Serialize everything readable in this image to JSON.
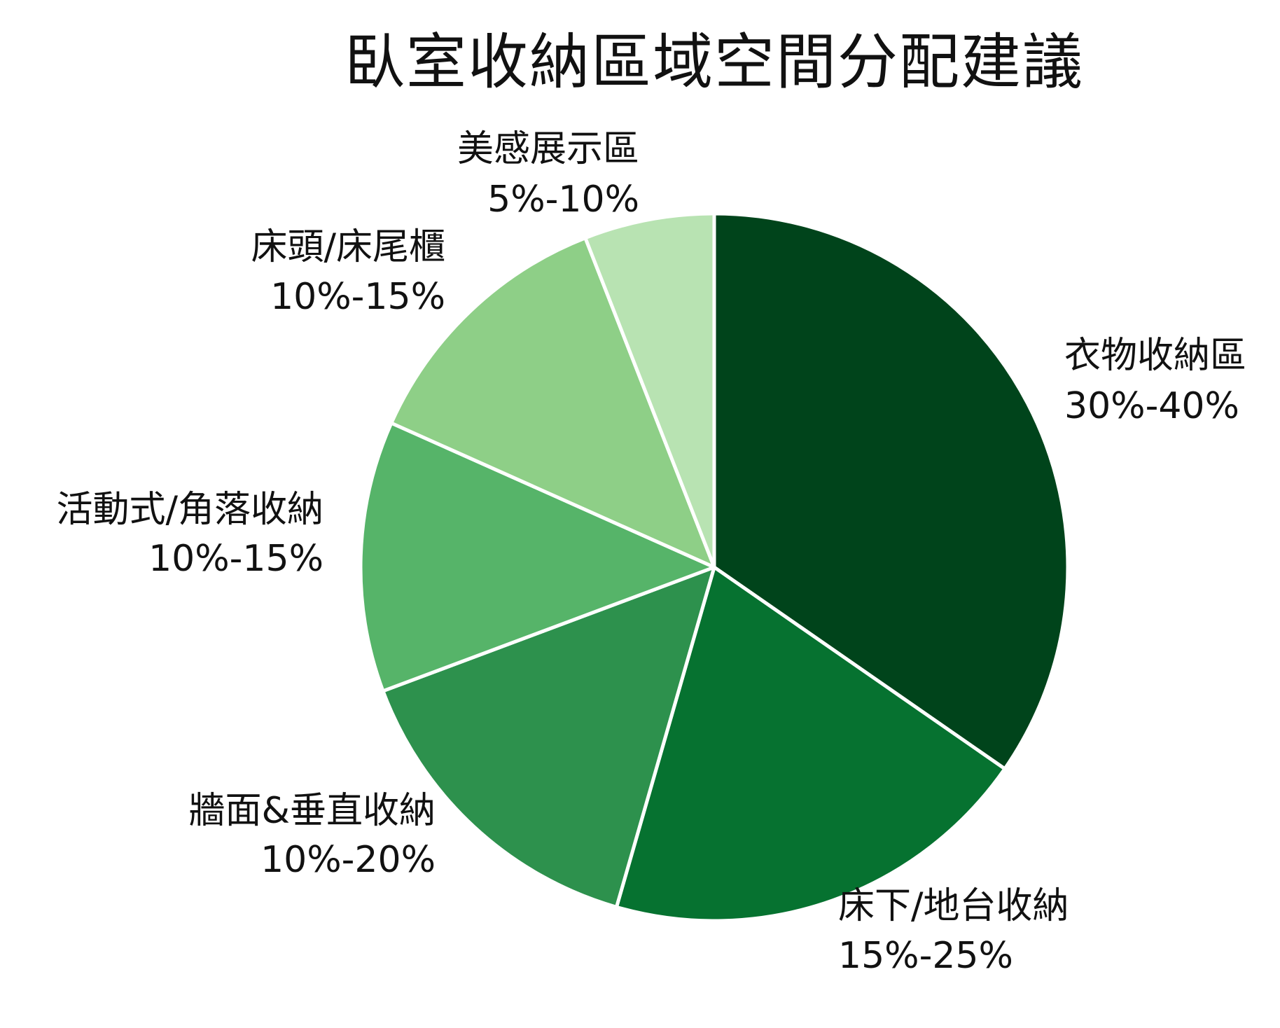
{
  "chart_data": {
    "type": "pie",
    "title": "臥室收納區域空間分配建議",
    "slices": [
      {
        "label": "衣物收納區",
        "range": "30%-40%",
        "value": 35,
        "color": "#00441b"
      },
      {
        "label": "床下/地台收納",
        "range": "15%-25%",
        "value": 20,
        "color": "#067230"
      },
      {
        "label": "牆面&垂直收納",
        "range": "10%-20%",
        "value": 15,
        "color": "#2d914d"
      },
      {
        "label": "活動式/角落收納",
        "range": "10%-15%",
        "value": 12.5,
        "color": "#56b469"
      },
      {
        "label": "床頭/床尾櫃",
        "range": "10%-15%",
        "value": 12.5,
        "color": "#8ecf87"
      },
      {
        "label": "美感展示區",
        "range": "5%-10%",
        "value": 6,
        "color": "#b8e3b2"
      }
    ],
    "start_angle": "top",
    "direction": "clockwise",
    "legend": "none"
  }
}
